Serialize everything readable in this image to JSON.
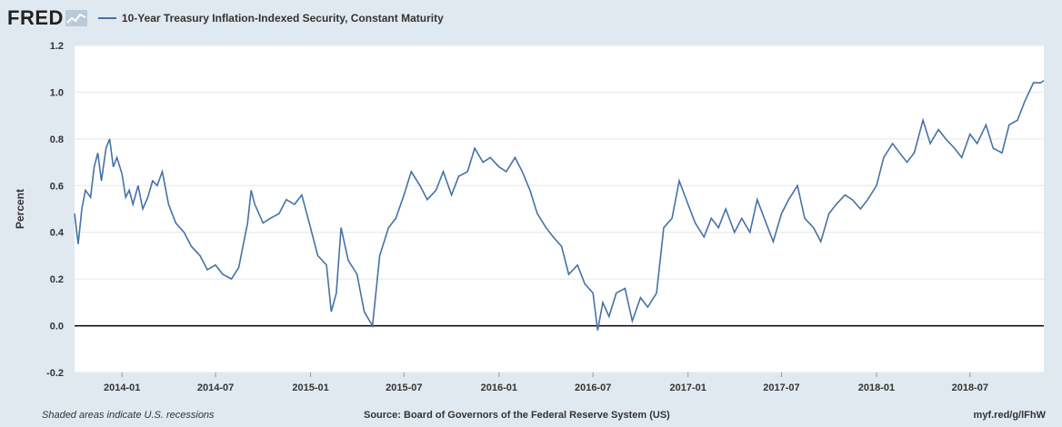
{
  "brand": {
    "logo": "FRED"
  },
  "footer": {
    "recessions_note": "Shaded areas indicate U.S. recessions",
    "source": "Source: Board of Governors of the Federal Reserve System (US)",
    "short_url": "myf.red/g/lFhW"
  },
  "colors": {
    "series": "#4572a7",
    "background": "#e1e9f0",
    "plot": "#ffffff",
    "zero_line": "#000000"
  },
  "icons": {
    "logo_graph": "line-chart-icon"
  },
  "chart_data": {
    "type": "line",
    "title": "",
    "xlabel": "",
    "ylabel": "Percent",
    "ylim": [
      -0.2,
      1.2
    ],
    "yticks": [
      -0.2,
      0.0,
      0.2,
      0.4,
      0.6,
      0.8,
      1.0,
      1.2
    ],
    "ytick_labels": [
      "-0.2",
      "0.0",
      "0.2",
      "0.4",
      "0.6",
      "0.8",
      "1.0",
      "1.2"
    ],
    "xlim": [
      "2013-10-01",
      "2018-11-21"
    ],
    "xticks": [
      "2014-01-01",
      "2014-07-01",
      "2015-01-01",
      "2015-07-01",
      "2016-01-01",
      "2016-07-01",
      "2017-01-01",
      "2017-07-01",
      "2018-01-01",
      "2018-07-01"
    ],
    "xtick_labels": [
      "2014-01",
      "2014-07",
      "2015-01",
      "2015-07",
      "2016-01",
      "2016-07",
      "2017-01",
      "2017-07",
      "2018-01",
      "2018-07"
    ],
    "grid": true,
    "legend": "top-left",
    "series": [
      {
        "name": "10-Year Treasury Inflation-Indexed Security, Constant Maturity",
        "x": [
          "2013-10-01",
          "2013-10-08",
          "2013-10-15",
          "2013-10-22",
          "2013-11-01",
          "2013-11-08",
          "2013-11-15",
          "2013-11-22",
          "2013-12-01",
          "2013-12-08",
          "2013-12-15",
          "2013-12-22",
          "2014-01-01",
          "2014-01-08",
          "2014-01-15",
          "2014-01-22",
          "2014-02-01",
          "2014-02-10",
          "2014-02-20",
          "2014-03-01",
          "2014-03-10",
          "2014-03-20",
          "2014-04-01",
          "2014-04-15",
          "2014-05-01",
          "2014-05-15",
          "2014-06-01",
          "2014-06-15",
          "2014-07-01",
          "2014-07-15",
          "2014-08-01",
          "2014-08-15",
          "2014-09-01",
          "2014-09-08",
          "2014-09-15",
          "2014-10-01",
          "2014-10-15",
          "2014-11-01",
          "2014-11-15",
          "2014-12-01",
          "2014-12-15",
          "2015-01-01",
          "2015-01-15",
          "2015-02-01",
          "2015-02-10",
          "2015-02-20",
          "2015-03-01",
          "2015-03-15",
          "2015-04-01",
          "2015-04-15",
          "2015-05-01",
          "2015-05-15",
          "2015-06-01",
          "2015-06-15",
          "2015-07-01",
          "2015-07-15",
          "2015-08-01",
          "2015-08-15",
          "2015-09-01",
          "2015-09-15",
          "2015-10-01",
          "2015-10-15",
          "2015-11-01",
          "2015-11-15",
          "2015-12-01",
          "2015-12-15",
          "2016-01-01",
          "2016-01-15",
          "2016-02-01",
          "2016-02-15",
          "2016-03-01",
          "2016-03-15",
          "2016-04-01",
          "2016-04-15",
          "2016-05-01",
          "2016-05-15",
          "2016-06-01",
          "2016-06-15",
          "2016-07-01",
          "2016-07-10",
          "2016-07-20",
          "2016-08-01",
          "2016-08-15",
          "2016-09-01",
          "2016-09-15",
          "2016-10-01",
          "2016-10-15",
          "2016-11-01",
          "2016-11-15",
          "2016-12-01",
          "2016-12-15",
          "2017-01-01",
          "2017-01-15",
          "2017-02-01",
          "2017-02-15",
          "2017-03-01",
          "2017-03-15",
          "2017-04-01",
          "2017-04-15",
          "2017-05-01",
          "2017-05-15",
          "2017-06-01",
          "2017-06-15",
          "2017-07-01",
          "2017-07-15",
          "2017-08-01",
          "2017-08-15",
          "2017-09-01",
          "2017-09-15",
          "2017-10-01",
          "2017-10-15",
          "2017-11-01",
          "2017-11-15",
          "2017-12-01",
          "2017-12-15",
          "2018-01-01",
          "2018-01-15",
          "2018-02-01",
          "2018-02-15",
          "2018-03-01",
          "2018-03-15",
          "2018-04-01",
          "2018-04-15",
          "2018-05-01",
          "2018-05-15",
          "2018-06-01",
          "2018-06-15",
          "2018-07-01",
          "2018-07-15",
          "2018-08-01",
          "2018-08-15",
          "2018-09-01",
          "2018-09-15",
          "2018-10-01",
          "2018-10-15",
          "2018-11-01",
          "2018-11-15",
          "2018-11-21"
        ],
        "values": [
          0.48,
          0.35,
          0.5,
          0.58,
          0.55,
          0.68,
          0.74,
          0.62,
          0.76,
          0.8,
          0.68,
          0.72,
          0.65,
          0.55,
          0.58,
          0.52,
          0.6,
          0.5,
          0.55,
          0.62,
          0.6,
          0.66,
          0.52,
          0.44,
          0.4,
          0.34,
          0.3,
          0.24,
          0.26,
          0.22,
          0.2,
          0.25,
          0.44,
          0.58,
          0.52,
          0.44,
          0.46,
          0.48,
          0.54,
          0.52,
          0.56,
          0.42,
          0.3,
          0.26,
          0.06,
          0.14,
          0.42,
          0.28,
          0.22,
          0.06,
          0.0,
          0.3,
          0.42,
          0.46,
          0.56,
          0.66,
          0.6,
          0.54,
          0.58,
          0.66,
          0.56,
          0.64,
          0.66,
          0.76,
          0.7,
          0.72,
          0.68,
          0.66,
          0.72,
          0.66,
          0.58,
          0.48,
          0.42,
          0.38,
          0.34,
          0.22,
          0.26,
          0.18,
          0.14,
          -0.02,
          0.1,
          0.04,
          0.14,
          0.16,
          0.02,
          0.12,
          0.08,
          0.14,
          0.42,
          0.46,
          0.62,
          0.52,
          0.44,
          0.38,
          0.46,
          0.42,
          0.5,
          0.4,
          0.46,
          0.4,
          0.54,
          0.44,
          0.36,
          0.48,
          0.54,
          0.6,
          0.46,
          0.42,
          0.36,
          0.48,
          0.52,
          0.56,
          0.54,
          0.5,
          0.54,
          0.6,
          0.72,
          0.78,
          0.74,
          0.7,
          0.74,
          0.88,
          0.78,
          0.84,
          0.8,
          0.76,
          0.72,
          0.82,
          0.78,
          0.86,
          0.76,
          0.74,
          0.86,
          0.88,
          0.96,
          1.04,
          1.04,
          1.05
        ]
      }
    ]
  }
}
